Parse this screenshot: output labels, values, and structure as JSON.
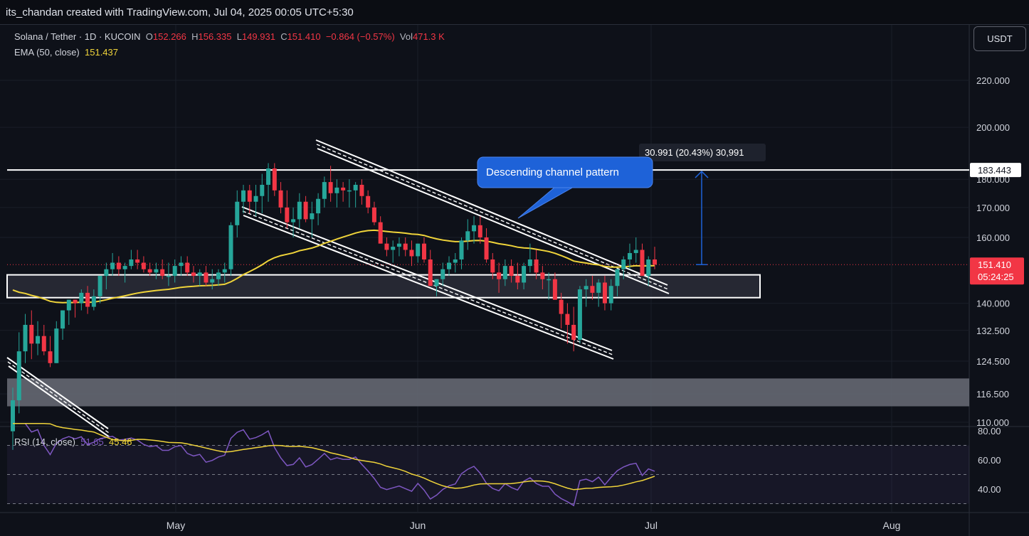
{
  "header": {
    "author_line": "its_chandan created with TradingView.com, Jul 04, 2025 00:05 UTC+5:30"
  },
  "legend": {
    "symbol": "Solana / Tether · 1D · KUCOIN",
    "o_label": "O",
    "o_value": "152.266",
    "h_label": "H",
    "h_value": "156.335",
    "l_label": "L",
    "l_value": "149.931",
    "c_label": "C",
    "c_value": "151.410",
    "change": "−0.864 (−0.57%)",
    "vol_label": "Vol",
    "vol_value": "471.3 K",
    "ema_label": "EMA (50, close)",
    "ema_value": "151.437",
    "rsi_label": "RSI (14, close)",
    "rsi_value": "51.65",
    "rsi_ma_value": "45.46"
  },
  "currency_button": "USDT",
  "colors": {
    "up": "#26a69a",
    "down": "#f23645",
    "ema": "#f0d43a",
    "rsi": "#7e57c2",
    "rsi_ma": "#f0d43a",
    "annotation": "#1e62d8",
    "background": "#0e1119"
  },
  "chart_data": [
    {
      "type": "candlestick",
      "symbol": "Solana / Tether",
      "timeframe": "1D",
      "exchange": "KUCOIN",
      "x_tick_labels": [
        "May",
        "Jun",
        "Jul",
        "Aug"
      ],
      "y_tick_labels": [
        "220.000",
        "200.000",
        "180.000",
        "170.000",
        "160.000",
        "140.000",
        "132.500",
        "124.500",
        "116.500",
        "110.000"
      ],
      "y_scale": "log",
      "ylim": [
        110,
        230
      ],
      "grid": true,
      "candles_ohlc": [
        [
          108,
          118,
          104,
          115
        ],
        [
          115,
          132,
          112,
          127
        ],
        [
          127,
          137,
          124,
          134
        ],
        [
          134,
          138,
          125,
          129
        ],
        [
          129,
          135,
          126,
          131
        ],
        [
          131,
          134,
          126,
          127
        ],
        [
          127,
          131,
          123,
          124
        ],
        [
          124,
          135,
          124,
          133
        ],
        [
          133,
          138,
          130,
          138
        ],
        [
          138,
          141,
          134,
          141
        ],
        [
          141,
          141,
          136,
          140
        ],
        [
          140,
          144,
          138,
          143
        ],
        [
          143,
          145,
          137,
          139
        ],
        [
          139,
          144,
          138,
          142
        ],
        [
          142,
          148,
          140,
          148
        ],
        [
          148,
          152,
          144,
          150
        ],
        [
          150,
          155,
          148,
          152
        ],
        [
          152,
          154,
          148,
          150
        ],
        [
          150,
          152,
          146,
          151
        ],
        [
          151,
          156,
          150,
          153
        ],
        [
          153,
          156,
          150,
          152
        ],
        [
          152,
          154,
          149,
          150
        ],
        [
          150,
          152,
          148,
          149
        ],
        [
          149,
          152,
          147,
          150
        ],
        [
          150,
          153,
          147,
          148
        ],
        [
          148,
          152,
          145,
          148
        ],
        [
          148,
          153,
          146,
          151
        ],
        [
          151,
          154,
          148,
          152
        ],
        [
          152,
          154,
          148,
          149
        ],
        [
          149,
          151,
          146,
          148
        ],
        [
          148,
          150,
          145,
          149
        ],
        [
          149,
          151,
          145,
          146
        ],
        [
          146,
          150,
          144,
          147
        ],
        [
          147,
          150,
          145,
          149
        ],
        [
          149,
          152,
          146,
          150
        ],
        [
          150,
          165,
          148,
          164
        ],
        [
          164,
          176,
          160,
          172
        ],
        [
          172,
          178,
          168,
          176
        ],
        [
          176,
          178,
          168,
          172
        ],
        [
          172,
          178,
          167,
          174
        ],
        [
          174,
          182,
          168,
          178
        ],
        [
          178,
          186,
          172,
          184
        ],
        [
          184,
          186,
          174,
          176
        ],
        [
          176,
          179,
          168,
          170
        ],
        [
          170,
          176,
          163,
          165
        ],
        [
          165,
          170,
          160,
          166
        ],
        [
          166,
          175,
          163,
          172
        ],
        [
          172,
          174,
          165,
          166
        ],
        [
          166,
          172,
          160,
          168
        ],
        [
          168,
          175,
          164,
          173
        ],
        [
          173,
          181,
          170,
          179
        ],
        [
          179,
          185,
          172,
          175
        ],
        [
          175,
          180,
          170,
          177
        ],
        [
          177,
          179,
          172,
          176
        ],
        [
          176,
          180,
          170,
          176
        ],
        [
          176,
          179,
          170,
          178
        ],
        [
          178,
          180,
          171,
          174
        ],
        [
          174,
          176,
          168,
          170
        ],
        [
          170,
          172,
          164,
          165
        ],
        [
          165,
          167,
          158,
          158
        ],
        [
          158,
          160,
          154,
          156
        ],
        [
          156,
          159,
          152,
          157
        ],
        [
          157,
          160,
          154,
          158
        ],
        [
          158,
          160,
          154,
          156
        ],
        [
          156,
          159,
          151,
          154
        ],
        [
          154,
          158,
          152,
          158
        ],
        [
          158,
          160,
          152,
          153
        ],
        [
          153,
          156,
          145,
          145
        ],
        [
          145,
          147,
          142,
          147
        ],
        [
          147,
          152,
          145,
          150
        ],
        [
          150,
          154,
          148,
          152
        ],
        [
          152,
          155,
          149,
          153
        ],
        [
          153,
          160,
          150,
          159
        ],
        [
          159,
          166,
          156,
          162
        ],
        [
          162,
          167,
          158,
          164
        ],
        [
          164,
          167,
          158,
          160
        ],
        [
          160,
          163,
          152,
          153
        ],
        [
          153,
          155,
          147,
          149
        ],
        [
          149,
          152,
          143,
          147
        ],
        [
          147,
          153,
          145,
          151
        ],
        [
          151,
          153,
          146,
          148
        ],
        [
          148,
          152,
          144,
          146
        ],
        [
          146,
          152,
          144,
          151
        ],
        [
          151,
          158,
          149,
          153
        ],
        [
          153,
          156,
          147,
          149
        ],
        [
          149,
          151,
          144,
          147
        ],
        [
          147,
          149,
          141,
          147
        ],
        [
          147,
          149,
          141,
          141
        ],
        [
          141,
          143,
          133,
          137
        ],
        [
          137,
          140,
          129,
          134
        ],
        [
          134,
          139,
          127,
          130
        ],
        [
          130,
          145,
          129,
          144
        ],
        [
          144,
          147,
          139,
          145
        ],
        [
          145,
          148,
          141,
          143
        ],
        [
          143,
          147,
          139,
          146
        ],
        [
          146,
          148,
          138,
          140
        ],
        [
          140,
          147,
          138,
          145
        ],
        [
          145,
          150,
          142,
          150
        ],
        [
          150,
          154,
          147,
          153
        ],
        [
          153,
          158,
          150,
          155
        ],
        [
          155,
          160,
          152,
          156
        ],
        [
          156,
          158,
          148,
          148
        ],
        [
          148,
          154,
          145,
          153
        ],
        [
          153,
          157,
          150,
          151.41
        ]
      ],
      "ema_50_end": 151.437,
      "resistance_level": 183.443,
      "current_price": "151.410",
      "countdown": "05:24:25",
      "measure_label": "30.991 (20.43%) 30,991",
      "annotation_text": "Descending channel pattern"
    },
    {
      "type": "line",
      "title": "RSI (14, close)",
      "y_tick_labels": [
        "80.00",
        "60.00",
        "40.00"
      ],
      "bands": [
        70,
        50,
        30
      ],
      "series": [
        {
          "name": "RSI",
          "last": 51.65
        },
        {
          "name": "RSI MA",
          "last": 45.46
        }
      ]
    }
  ]
}
